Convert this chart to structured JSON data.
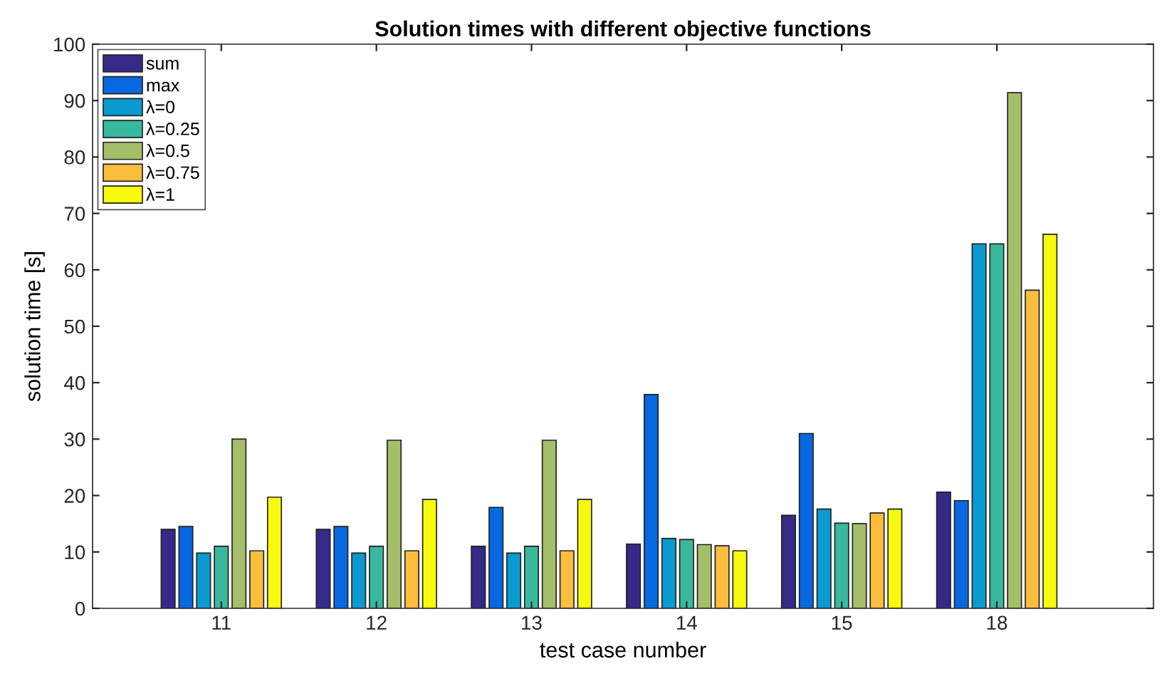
{
  "chart_data": {
    "type": "bar",
    "title": "Solution times with different objective functions",
    "xlabel": "test case number",
    "ylabel": "solution time [s]",
    "categories": [
      "11",
      "12",
      "13",
      "14",
      "15",
      "18"
    ],
    "series": [
      {
        "name": "sum",
        "color": "#352a87",
        "values": [
          14,
          14,
          11,
          11.4,
          16.5,
          20.6
        ]
      },
      {
        "name": "max",
        "color": "#0868e0",
        "values": [
          14.5,
          14.5,
          17.9,
          37.9,
          31,
          19.1
        ]
      },
      {
        "name": "λ=0",
        "color": "#0a9ad0",
        "values": [
          9.8,
          9.8,
          9.8,
          12.4,
          17.6,
          64.6
        ]
      },
      {
        "name": "λ=0.25",
        "color": "#38b99e",
        "values": [
          11,
          11,
          11,
          12.2,
          15.1,
          64.6
        ]
      },
      {
        "name": "λ=0.5",
        "color": "#a5be6a",
        "values": [
          30,
          29.8,
          29.8,
          11.3,
          15,
          91.4
        ]
      },
      {
        "name": "λ=0.75",
        "color": "#fbbd3d",
        "values": [
          10.2,
          10.2,
          10.2,
          11.1,
          16.9,
          56.4
        ]
      },
      {
        "name": "λ=1",
        "color": "#f8fa0d",
        "values": [
          19.7,
          19.3,
          19.3,
          10.2,
          17.6,
          66.3
        ]
      }
    ],
    "ylim": [
      0,
      100
    ],
    "yticks": [
      0,
      10,
      20,
      30,
      40,
      50,
      60,
      70,
      80,
      90,
      100
    ],
    "grid": false,
    "legend": "top left"
  }
}
